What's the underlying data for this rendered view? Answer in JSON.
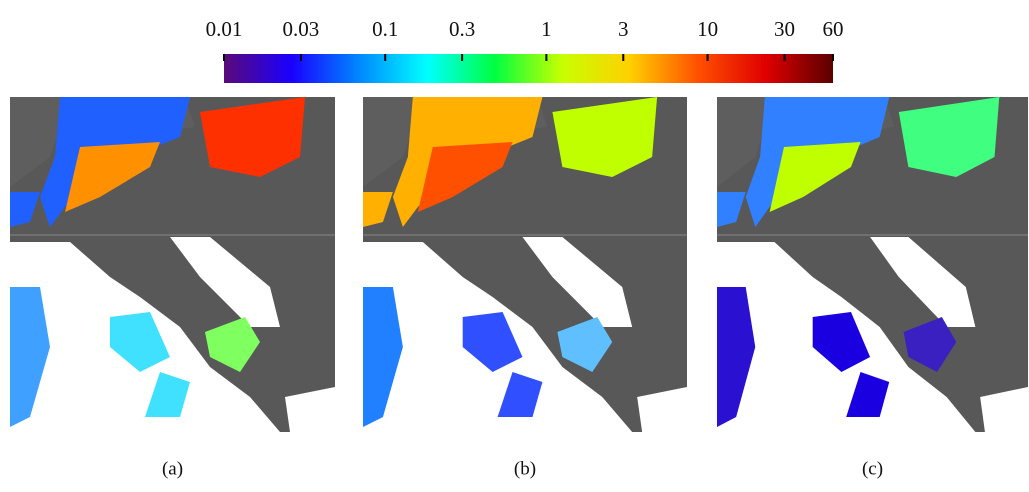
{
  "chart_data": {
    "type": "colorbar",
    "log_scale": true,
    "xlim": [
      0.01,
      60
    ],
    "xticks": [
      0.01,
      0.03,
      0.1,
      0.3,
      1,
      3,
      10,
      30,
      60
    ],
    "colormap": [
      "#5a0a78",
      "#1a00ff",
      "#0088ff",
      "#00ffff",
      "#00ff40",
      "#c8ff00",
      "#ffd000",
      "#ff5000",
      "#e00000",
      "#5a0000"
    ],
    "panels": [
      "(a)",
      "(b)",
      "(c)"
    ]
  }
}
